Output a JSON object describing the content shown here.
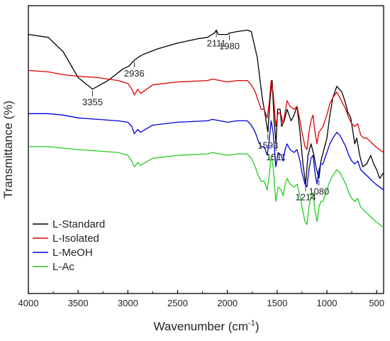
{
  "chart_data": {
    "type": "line",
    "xlabel": "Wavenumber (cm",
    "xlabel_sup": "-1",
    "xlabel_close": ")",
    "ylabel": "Transmittance (%)",
    "xlim": [
      4000,
      430
    ],
    "x_reversed": true,
    "xticks": [
      4000,
      3500,
      3000,
      2500,
      2000,
      1500,
      1000,
      500
    ],
    "grid": false,
    "legend_position": "bottom-left",
    "series": [
      {
        "name": "L-Standard",
        "color": "#000000",
        "points": [
          [
            4000,
            0.1
          ],
          [
            3800,
            0.11
          ],
          [
            3650,
            0.16
          ],
          [
            3500,
            0.25
          ],
          [
            3355,
            0.29
          ],
          [
            3200,
            0.26
          ],
          [
            3050,
            0.22
          ],
          [
            2990,
            0.21
          ],
          [
            2936,
            0.19
          ],
          [
            2900,
            0.18
          ],
          [
            2850,
            0.17
          ],
          [
            2700,
            0.15
          ],
          [
            2500,
            0.13
          ],
          [
            2300,
            0.115
          ],
          [
            2200,
            0.11
          ],
          [
            2130,
            0.095
          ],
          [
            2111,
            0.085
          ],
          [
            2090,
            0.1
          ],
          [
            2000,
            0.1
          ],
          [
            1980,
            0.095
          ],
          [
            1900,
            0.09
          ],
          [
            1800,
            0.085
          ],
          [
            1760,
            0.09
          ],
          [
            1700,
            0.18
          ],
          [
            1650,
            0.32
          ],
          [
            1620,
            0.38
          ],
          [
            1593,
            0.44
          ],
          [
            1570,
            0.32
          ],
          [
            1550,
            0.26
          ],
          [
            1530,
            0.4
          ],
          [
            1511,
            0.48
          ],
          [
            1495,
            0.36
          ],
          [
            1470,
            0.36
          ],
          [
            1455,
            0.42
          ],
          [
            1430,
            0.4
          ],
          [
            1400,
            0.36
          ],
          [
            1360,
            0.4
          ],
          [
            1330,
            0.38
          ],
          [
            1300,
            0.35
          ],
          [
            1270,
            0.44
          ],
          [
            1240,
            0.55
          ],
          [
            1214,
            0.62
          ],
          [
            1190,
            0.52
          ],
          [
            1160,
            0.48
          ],
          [
            1130,
            0.52
          ],
          [
            1110,
            0.56
          ],
          [
            1080,
            0.6
          ],
          [
            1060,
            0.54
          ],
          [
            1030,
            0.5
          ],
          [
            1000,
            0.46
          ],
          [
            970,
            0.38
          ],
          [
            940,
            0.32
          ],
          [
            900,
            0.28
          ],
          [
            850,
            0.3
          ],
          [
            820,
            0.33
          ],
          [
            790,
            0.37
          ],
          [
            760,
            0.39
          ],
          [
            720,
            0.48
          ],
          [
            700,
            0.46
          ],
          [
            670,
            0.52
          ],
          [
            640,
            0.56
          ],
          [
            600,
            0.55
          ],
          [
            560,
            0.52
          ],
          [
            530,
            0.55
          ],
          [
            500,
            0.57
          ],
          [
            470,
            0.6
          ],
          [
            430,
            0.58
          ]
        ]
      },
      {
        "name": "L-Isolated",
        "color": "#e00000",
        "points": [
          [
            4000,
            0.225
          ],
          [
            3800,
            0.23
          ],
          [
            3650,
            0.24
          ],
          [
            3500,
            0.245
          ],
          [
            3300,
            0.25
          ],
          [
            3100,
            0.26
          ],
          [
            3000,
            0.27
          ],
          [
            2960,
            0.29
          ],
          [
            2936,
            0.31
          ],
          [
            2900,
            0.29
          ],
          [
            2870,
            0.305
          ],
          [
            2850,
            0.3
          ],
          [
            2750,
            0.275
          ],
          [
            2500,
            0.265
          ],
          [
            2200,
            0.26
          ],
          [
            2150,
            0.255
          ],
          [
            2000,
            0.265
          ],
          [
            1900,
            0.26
          ],
          [
            1800,
            0.26
          ],
          [
            1760,
            0.275
          ],
          [
            1720,
            0.3
          ],
          [
            1690,
            0.33
          ],
          [
            1660,
            0.36
          ],
          [
            1630,
            0.36
          ],
          [
            1600,
            0.39
          ],
          [
            1580,
            0.34
          ],
          [
            1560,
            0.26
          ],
          [
            1540,
            0.3
          ],
          [
            1513,
            0.42
          ],
          [
            1490,
            0.37
          ],
          [
            1460,
            0.38
          ],
          [
            1440,
            0.41
          ],
          [
            1420,
            0.37
          ],
          [
            1400,
            0.33
          ],
          [
            1370,
            0.35
          ],
          [
            1330,
            0.36
          ],
          [
            1300,
            0.35
          ],
          [
            1270,
            0.4
          ],
          [
            1250,
            0.44
          ],
          [
            1220,
            0.49
          ],
          [
            1200,
            0.5
          ],
          [
            1180,
            0.44
          ],
          [
            1160,
            0.4
          ],
          [
            1140,
            0.38
          ],
          [
            1120,
            0.44
          ],
          [
            1100,
            0.48
          ],
          [
            1080,
            0.44
          ],
          [
            1060,
            0.43
          ],
          [
            1040,
            0.42
          ],
          [
            1020,
            0.4
          ],
          [
            1000,
            0.38
          ],
          [
            970,
            0.34
          ],
          [
            940,
            0.32
          ],
          [
            900,
            0.3
          ],
          [
            870,
            0.32
          ],
          [
            840,
            0.34
          ],
          [
            810,
            0.36
          ],
          [
            780,
            0.39
          ],
          [
            750,
            0.41
          ],
          [
            720,
            0.42
          ],
          [
            690,
            0.41
          ],
          [
            660,
            0.45
          ],
          [
            630,
            0.46
          ],
          [
            600,
            0.46
          ],
          [
            570,
            0.47
          ],
          [
            540,
            0.48
          ],
          [
            510,
            0.49
          ],
          [
            470,
            0.5
          ],
          [
            430,
            0.51
          ]
        ]
      },
      {
        "name": "L-MeOH",
        "color": "#0000dd",
        "points": [
          [
            4000,
            0.375
          ],
          [
            3800,
            0.375
          ],
          [
            3650,
            0.38
          ],
          [
            3500,
            0.39
          ],
          [
            3300,
            0.395
          ],
          [
            3100,
            0.4
          ],
          [
            3000,
            0.405
          ],
          [
            2960,
            0.42
          ],
          [
            2936,
            0.445
          ],
          [
            2900,
            0.43
          ],
          [
            2870,
            0.44
          ],
          [
            2850,
            0.435
          ],
          [
            2750,
            0.415
          ],
          [
            2500,
            0.405
          ],
          [
            2200,
            0.4
          ],
          [
            2150,
            0.395
          ],
          [
            2000,
            0.405
          ],
          [
            1900,
            0.4
          ],
          [
            1800,
            0.4
          ],
          [
            1760,
            0.415
          ],
          [
            1720,
            0.44
          ],
          [
            1690,
            0.47
          ],
          [
            1660,
            0.49
          ],
          [
            1630,
            0.49
          ],
          [
            1600,
            0.52
          ],
          [
            1580,
            0.47
          ],
          [
            1560,
            0.4
          ],
          [
            1540,
            0.44
          ],
          [
            1513,
            0.56
          ],
          [
            1490,
            0.51
          ],
          [
            1460,
            0.52
          ],
          [
            1440,
            0.54
          ],
          [
            1420,
            0.5
          ],
          [
            1400,
            0.48
          ],
          [
            1370,
            0.5
          ],
          [
            1330,
            0.51
          ],
          [
            1300,
            0.5
          ],
          [
            1270,
            0.54
          ],
          [
            1250,
            0.58
          ],
          [
            1220,
            0.62
          ],
          [
            1200,
            0.63
          ],
          [
            1180,
            0.57
          ],
          [
            1160,
            0.53
          ],
          [
            1140,
            0.52
          ],
          [
            1120,
            0.58
          ],
          [
            1100,
            0.62
          ],
          [
            1080,
            0.57
          ],
          [
            1060,
            0.55
          ],
          [
            1040,
            0.55
          ],
          [
            1020,
            0.53
          ],
          [
            1000,
            0.51
          ],
          [
            970,
            0.48
          ],
          [
            940,
            0.46
          ],
          [
            900,
            0.44
          ],
          [
            870,
            0.45
          ],
          [
            840,
            0.47
          ],
          [
            810,
            0.49
          ],
          [
            780,
            0.52
          ],
          [
            750,
            0.54
          ],
          [
            720,
            0.55
          ],
          [
            690,
            0.54
          ],
          [
            660,
            0.57
          ],
          [
            630,
            0.58
          ],
          [
            600,
            0.59
          ],
          [
            570,
            0.6
          ],
          [
            540,
            0.61
          ],
          [
            510,
            0.62
          ],
          [
            470,
            0.63
          ],
          [
            430,
            0.64
          ]
        ]
      },
      {
        "name": "L-Ac",
        "color": "#22cc22",
        "points": [
          [
            4000,
            0.49
          ],
          [
            3800,
            0.49
          ],
          [
            3650,
            0.495
          ],
          [
            3500,
            0.5
          ],
          [
            3300,
            0.505
          ],
          [
            3100,
            0.51
          ],
          [
            3000,
            0.52
          ],
          [
            2960,
            0.54
          ],
          [
            2936,
            0.56
          ],
          [
            2900,
            0.545
          ],
          [
            2870,
            0.555
          ],
          [
            2850,
            0.55
          ],
          [
            2750,
            0.53
          ],
          [
            2500,
            0.52
          ],
          [
            2200,
            0.515
          ],
          [
            2150,
            0.51
          ],
          [
            2000,
            0.52
          ],
          [
            1900,
            0.515
          ],
          [
            1800,
            0.515
          ],
          [
            1760,
            0.53
          ],
          [
            1720,
            0.56
          ],
          [
            1690,
            0.59
          ],
          [
            1660,
            0.61
          ],
          [
            1630,
            0.61
          ],
          [
            1600,
            0.64
          ],
          [
            1580,
            0.59
          ],
          [
            1560,
            0.52
          ],
          [
            1540,
            0.56
          ],
          [
            1513,
            0.68
          ],
          [
            1490,
            0.63
          ],
          [
            1460,
            0.64
          ],
          [
            1440,
            0.66
          ],
          [
            1420,
            0.62
          ],
          [
            1400,
            0.6
          ],
          [
            1370,
            0.62
          ],
          [
            1330,
            0.63
          ],
          [
            1300,
            0.62
          ],
          [
            1270,
            0.66
          ],
          [
            1250,
            0.7
          ],
          [
            1220,
            0.75
          ],
          [
            1200,
            0.76
          ],
          [
            1180,
            0.7
          ],
          [
            1160,
            0.66
          ],
          [
            1140,
            0.65
          ],
          [
            1120,
            0.71
          ],
          [
            1100,
            0.75
          ],
          [
            1080,
            0.7
          ],
          [
            1060,
            0.68
          ],
          [
            1040,
            0.68
          ],
          [
            1020,
            0.66
          ],
          [
            1000,
            0.64
          ],
          [
            970,
            0.61
          ],
          [
            940,
            0.59
          ],
          [
            900,
            0.57
          ],
          [
            870,
            0.58
          ],
          [
            840,
            0.6
          ],
          [
            810,
            0.62
          ],
          [
            780,
            0.65
          ],
          [
            750,
            0.67
          ],
          [
            720,
            0.68
          ],
          [
            690,
            0.67
          ],
          [
            660,
            0.7
          ],
          [
            630,
            0.71
          ],
          [
            600,
            0.72
          ],
          [
            570,
            0.73
          ],
          [
            540,
            0.74
          ],
          [
            510,
            0.75
          ],
          [
            470,
            0.76
          ],
          [
            430,
            0.77
          ]
        ]
      }
    ],
    "annotations": [
      {
        "text": "3355",
        "x": 3355,
        "y": 0.29
      },
      {
        "text": "2936",
        "x": 2936,
        "y": 0.19
      },
      {
        "text": "2111",
        "x": 2111,
        "y": 0.085
      },
      {
        "text": "1980",
        "x": 1980,
        "y": 0.095
      },
      {
        "text": "1593",
        "x": 1593,
        "y": 0.44
      },
      {
        "text": "1511",
        "x": 1511,
        "y": 0.48
      },
      {
        "text": "1214",
        "x": 1214,
        "y": 0.62
      },
      {
        "text": "1080",
        "x": 1080,
        "y": 0.6
      }
    ]
  }
}
